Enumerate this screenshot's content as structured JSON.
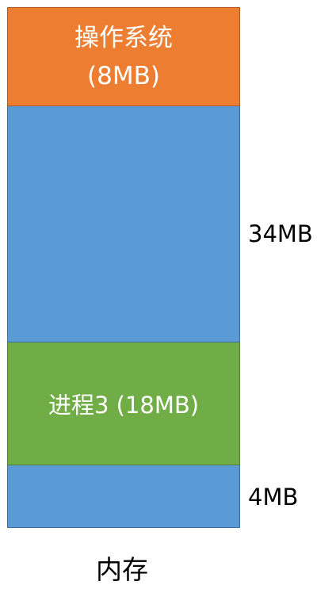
{
  "memory": {
    "caption": "内存",
    "blocks": {
      "os": {
        "line1": "操作系统",
        "line2": "(8MB)",
        "color": "#ed7d31"
      },
      "free1": {
        "size_label": "34MB",
        "color": "#5b9bd5"
      },
      "process3": {
        "label": "进程3 (18MB)",
        "color": "#70ad47"
      },
      "free2": {
        "size_label": "4MB",
        "color": "#5b9bd5"
      }
    }
  }
}
